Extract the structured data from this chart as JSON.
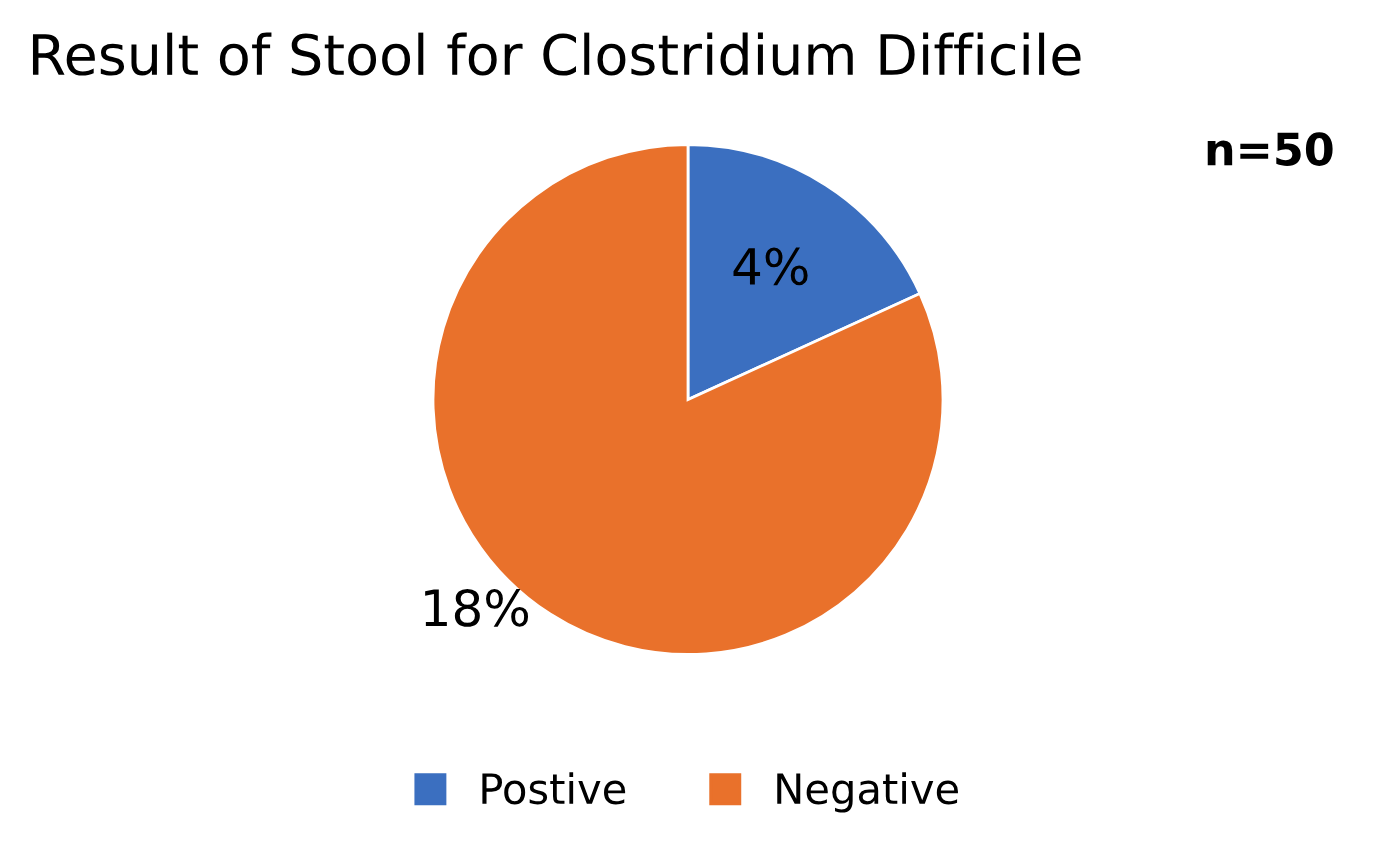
{
  "chart_data": {
    "type": "pie",
    "title": "Result of Stool for Clostridium Difficile",
    "categories": [
      "Postive",
      "Negative"
    ],
    "values": [
      4,
      18
    ],
    "value_labels": [
      "4%",
      "18%"
    ],
    "colors": [
      "#3b6fc0",
      "#e9712b"
    ],
    "annotations": [
      "n=50"
    ],
    "legend": "bottom"
  }
}
